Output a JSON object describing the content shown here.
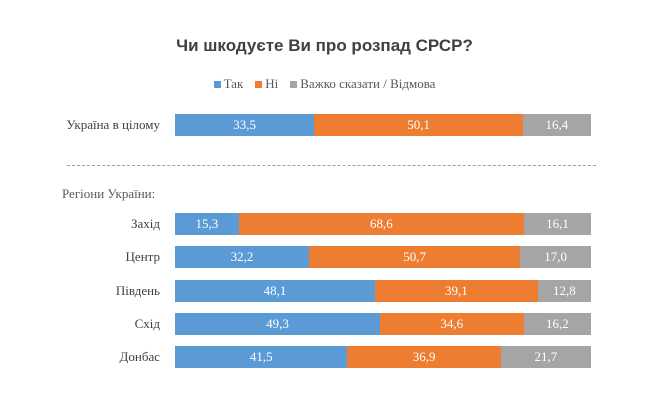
{
  "chart_data": {
    "type": "bar",
    "orientation": "horizontal",
    "stacked": true,
    "title": "Чи шкодуєте Ви про розпад СРСР?",
    "legend_position": "top",
    "grid": false,
    "section_label": "Регіони України:",
    "series": [
      {
        "name": "Так",
        "color": "#5b9bd5"
      },
      {
        "name": "Ні",
        "color": "#ed7d31"
      },
      {
        "name": "Важко сказати / Відмова",
        "color": "#a5a5a5"
      }
    ],
    "categories": [
      "Україна в цілому",
      "Захід",
      "Центр",
      "Південь",
      "Схід",
      "Донбас"
    ],
    "values": [
      [
        "33,5",
        "50,1",
        "16,4"
      ],
      [
        "15,3",
        "68,6",
        "16,1"
      ],
      [
        "32,2",
        "50,7",
        "17,0"
      ],
      [
        "48,1",
        "39,1",
        "12,8"
      ],
      [
        "49,3",
        "34,6",
        "16,2"
      ],
      [
        "41,5",
        "36,9",
        "21,7"
      ]
    ]
  }
}
